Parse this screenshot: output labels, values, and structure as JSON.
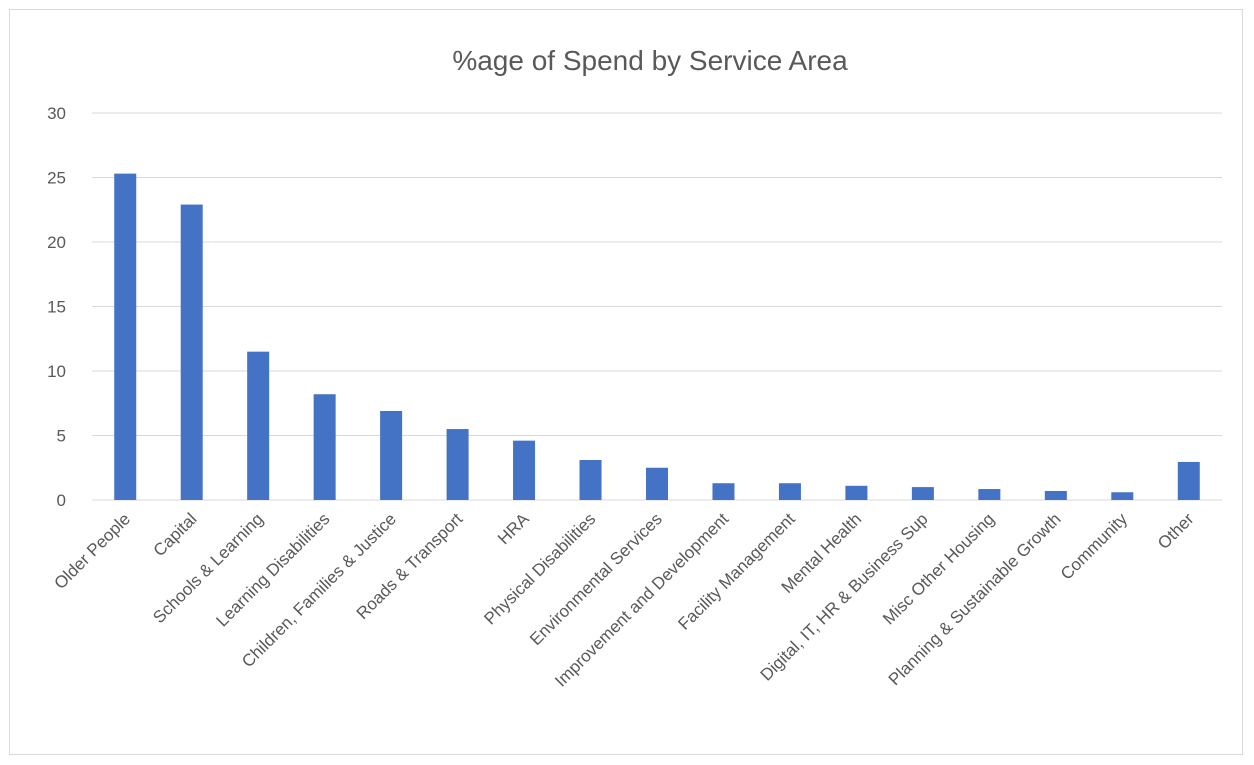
{
  "chart_data": {
    "type": "bar",
    "title": "%age of Spend by Service Area",
    "xlabel": "",
    "ylabel": "",
    "ylim": [
      0,
      30
    ],
    "yticks": [
      0,
      5,
      10,
      15,
      20,
      25,
      30
    ],
    "grid": true,
    "legend": "none",
    "bar_color": "#4472c4",
    "categories": [
      "Older People",
      "Capital",
      "Schools & Learning",
      "Learning Disabilities",
      "Children, Families & Justice",
      "Roads & Transport",
      "HRA",
      "Physical Disabilities",
      "Environmental Services",
      "Improvement and Development",
      "Facility Management",
      "Mental Health",
      "Digital, IT, HR & Business Sup",
      "Misc Other Housing",
      "Planning & Sustainable Growth",
      "Community",
      "Other"
    ],
    "values": [
      25.3,
      22.9,
      11.5,
      8.2,
      6.9,
      5.5,
      4.6,
      3.1,
      2.5,
      1.3,
      1.3,
      1.1,
      1.0,
      0.85,
      0.7,
      0.6,
      2.95
    ]
  }
}
